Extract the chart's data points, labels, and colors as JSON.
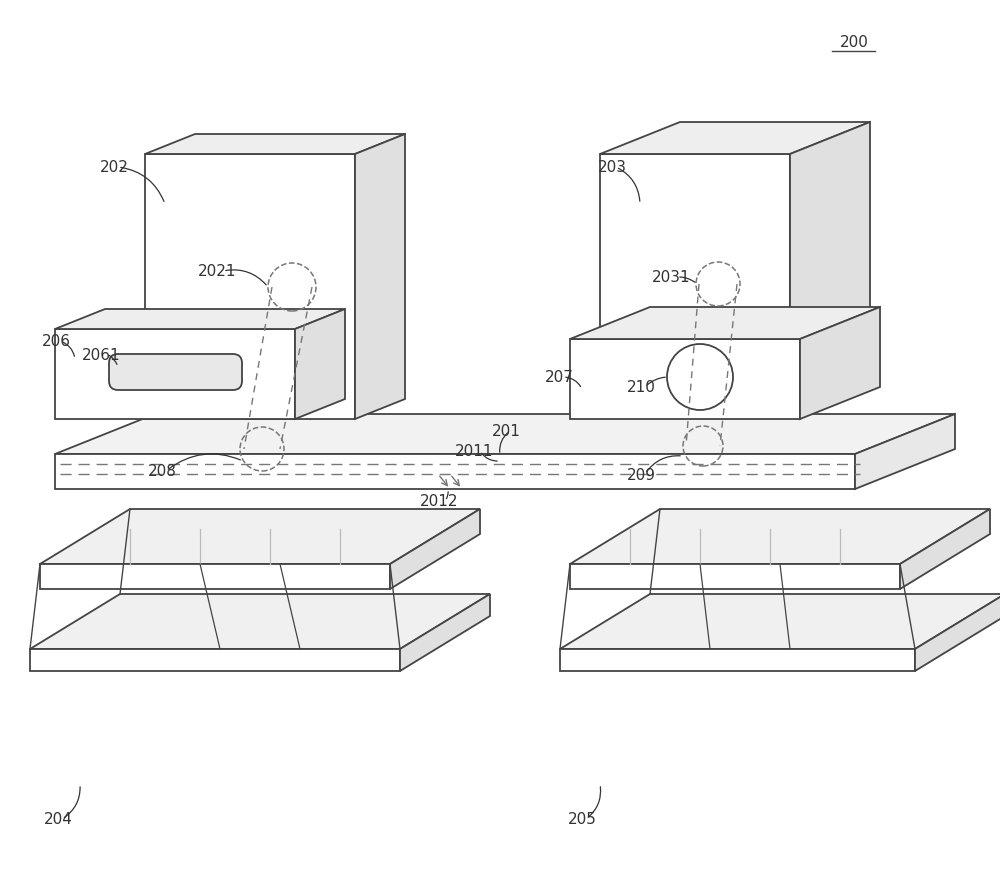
{
  "bg_color": "#ffffff",
  "line_color": "#444444",
  "dashed_color": "#777777",
  "label_color": "#333333",
  "fig_w": 10.0,
  "fig_h": 8.95
}
